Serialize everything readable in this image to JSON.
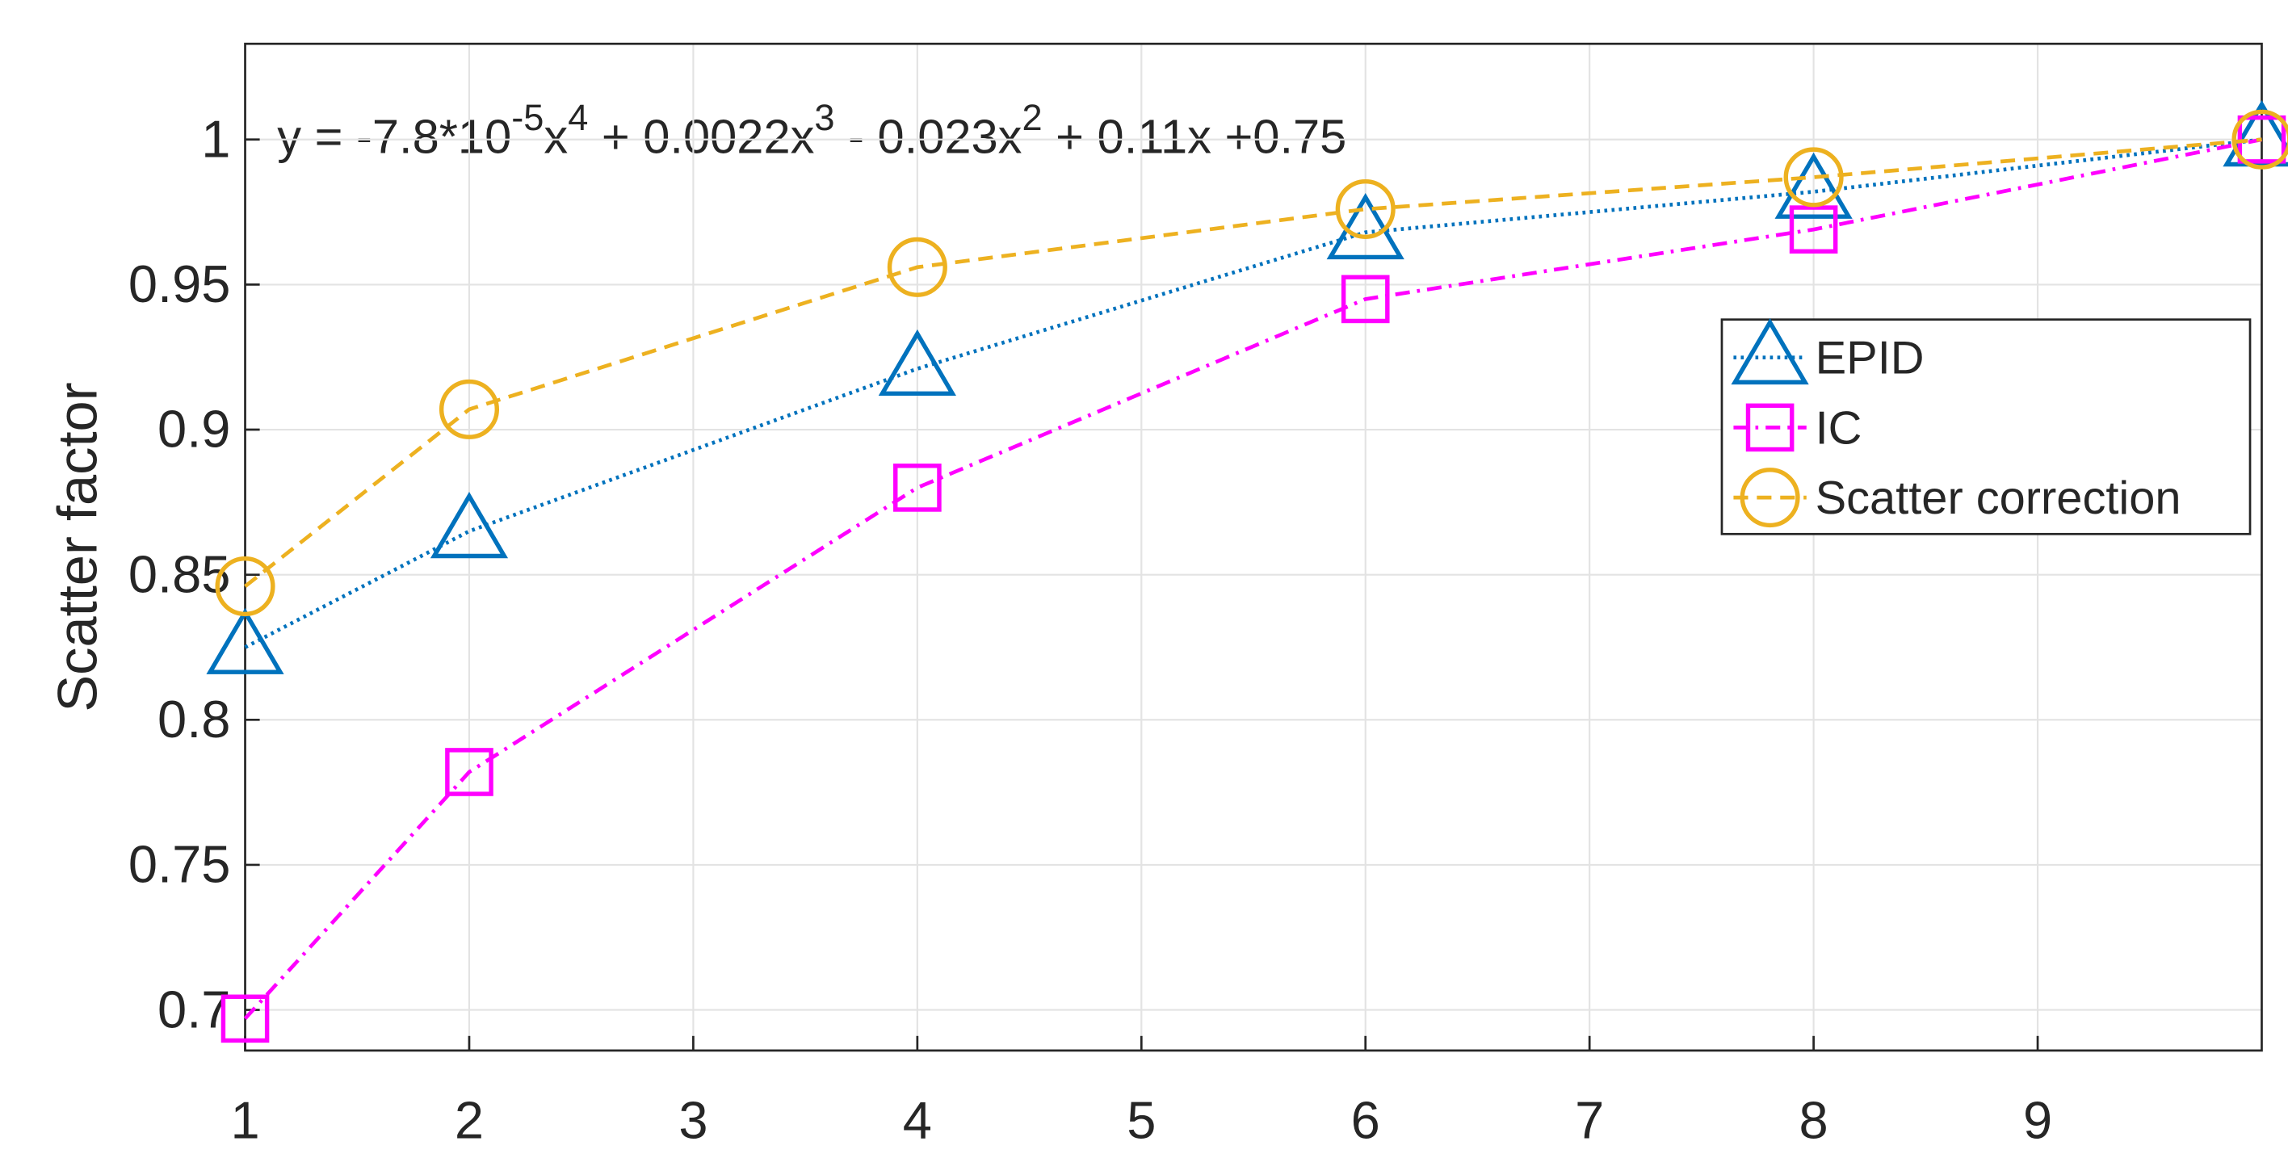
{
  "chart_data": {
    "type": "line",
    "ylabel": "Scatter factor",
    "annotation": [
      {
        "text": "y = -7.8*10"
      },
      {
        "text": "-5",
        "sup": true
      },
      {
        "text": "x"
      },
      {
        "text": "4",
        "sup": true
      },
      {
        "text": " + 0.0022x"
      },
      {
        "text": "3",
        "sup": true
      },
      {
        "text": " - 0.023x"
      },
      {
        "text": "2",
        "sup": true
      },
      {
        "text": " + 0.11x +0.75"
      }
    ],
    "x": [
      1,
      2,
      4,
      6,
      8,
      10
    ],
    "series": [
      {
        "name": "EPID",
        "color": "#0072BD",
        "marker": "triangle",
        "linestyle": "dotted",
        "values": [
          0.825,
          0.865,
          0.921,
          0.968,
          0.982,
          1.0
        ]
      },
      {
        "name": "IC",
        "color": "#FF00FF",
        "marker": "square",
        "linestyle": "dashdot",
        "values": [
          0.697,
          0.782,
          0.88,
          0.945,
          0.969,
          1.0
        ]
      },
      {
        "name": "Scatter correction",
        "color": "#EDB120",
        "marker": "circle",
        "linestyle": "dashed",
        "values": [
          0.846,
          0.907,
          0.956,
          0.976,
          0.987,
          1.0
        ]
      }
    ],
    "xlim": [
      1,
      10
    ],
    "xticks": [
      1,
      2,
      3,
      4,
      5,
      6,
      7,
      8,
      9
    ],
    "ylim": [
      0.686,
      1.033
    ],
    "yticks": [
      0.7,
      0.75,
      0.8,
      0.85,
      0.9,
      0.95,
      1
    ],
    "grid": true,
    "legend": "east"
  }
}
